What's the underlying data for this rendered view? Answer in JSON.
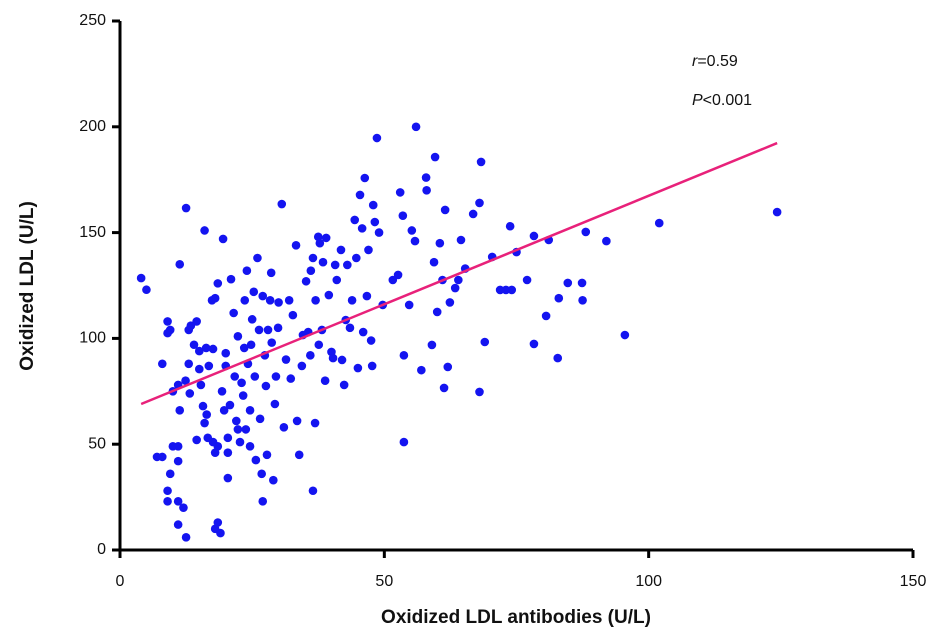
{
  "chart_data": {
    "type": "scatter",
    "x_label": "Oxidized LDL antibodies (U/L)",
    "y_label": "Oxidized LDL (U/L)",
    "xlim": [
      0,
      150
    ],
    "xticks": [
      0,
      50,
      100,
      150
    ],
    "ylim": [
      0,
      250
    ],
    "yticks": [
      0,
      50,
      100,
      150,
      200,
      250
    ],
    "annotations": [
      [
        "r",
        "=0.59"
      ],
      [
        "P",
        "<0.001"
      ]
    ],
    "fit": {
      "color": "#e8217a",
      "x": [
        4,
        124.3
      ],
      "y": [
        69,
        192.3
      ]
    },
    "series": [
      {
        "color": "#1414f0",
        "x": [
          4,
          5,
          12.5,
          11.3,
          7,
          8,
          9,
          9.5,
          9,
          8,
          9,
          9,
          9.5,
          11,
          11,
          12,
          12.5,
          10,
          11,
          11,
          10,
          11,
          11.3,
          12.4,
          13,
          13,
          13.4,
          14,
          14.5,
          15,
          15.3,
          14.5,
          15.7,
          16,
          16.4,
          16,
          16.8,
          17.6,
          17.4,
          18,
          17.6,
          18,
          18.5,
          18,
          18.5,
          19,
          19.5,
          19.3,
          19.7,
          20,
          20,
          20.4,
          20.4,
          20.4,
          20.8,
          21,
          21.5,
          21.7,
          22.3,
          22,
          22.7,
          23.3,
          23.5,
          23.6,
          24,
          24.2,
          24.6,
          24.8,
          25,
          25.3,
          25.5,
          25.7,
          26,
          26.3,
          26.5,
          26.8,
          27,
          27,
          27.4,
          27.6,
          27.8,
          28,
          28.4,
          28.6,
          28.7,
          29,
          29.3,
          29.5,
          29.9,
          30,
          30.6,
          31,
          31.4,
          32,
          32.3,
          32.7,
          33.3,
          33.5,
          33.9,
          34.4,
          34.6,
          35.2,
          35.6,
          36,
          36.1,
          36.5,
          36.5,
          36.9,
          37,
          37.5,
          37.6,
          37.8,
          38.2,
          38.4,
          38.8,
          39,
          39.5,
          40,
          40.3,
          40.7,
          41,
          41.8,
          42,
          42.4,
          42.7,
          43,
          43.5,
          43.9,
          44.4,
          44.7,
          45,
          45.4,
          45.8,
          46,
          46.3,
          46.7,
          47,
          47.5,
          47.7,
          47.9,
          48.2,
          48.6,
          49,
          49.7,
          51.6,
          52.6,
          53,
          53.5,
          53.7,
          53.7,
          54.7,
          55.2,
          55.8,
          56,
          57,
          58,
          57.9,
          59,
          59.4,
          59.6,
          60,
          60.5,
          61,
          61.3,
          61.5,
          62,
          62.4,
          63.4,
          64,
          64.5,
          65.3,
          66.8,
          68,
          68,
          68.3,
          69,
          70.4,
          71.9,
          73,
          73.8,
          74.1,
          75,
          77,
          78.3,
          78.3,
          80.6,
          81.1,
          82.8,
          83,
          84.7,
          87.4,
          87.5,
          88.1,
          92,
          95.5,
          102,
          124.3,
          16.3,
          18.5,
          13.2,
          15,
          16.6,
          23.8,
          24.6,
          22.3,
          23
        ],
        "y": [
          128.5,
          123,
          161.6,
          135,
          44,
          44,
          108,
          104,
          102.5,
          88,
          28,
          23,
          36,
          23,
          12,
          20,
          6,
          49,
          49,
          42,
          75,
          78,
          66,
          80,
          88,
          104,
          106,
          97,
          108,
          94,
          78,
          52,
          68,
          60,
          64,
          151,
          87,
          95,
          118,
          119,
          51,
          46,
          49,
          10,
          13,
          8,
          147,
          75,
          66,
          93,
          87,
          53,
          46,
          34,
          68.5,
          128,
          112,
          82,
          57,
          61,
          51,
          73,
          95.5,
          118,
          132,
          88,
          66,
          97,
          109,
          122,
          82,
          42.5,
          138,
          104,
          62,
          36,
          120,
          23,
          92,
          77.5,
          45,
          104,
          118,
          131,
          98,
          33,
          69,
          82,
          105,
          117,
          163.5,
          58,
          90,
          118,
          81,
          111,
          144,
          61,
          45,
          87,
          101.6,
          127,
          103,
          92,
          132,
          138,
          28,
          60,
          118,
          148,
          97,
          145,
          104,
          136,
          80,
          147.5,
          120.5,
          93.6,
          90.7,
          134.7,
          127.6,
          141.8,
          89.8,
          78,
          108.7,
          134.7,
          105,
          118,
          156,
          138,
          86,
          167.8,
          152,
          103,
          175.8,
          120,
          141.8,
          99,
          87,
          163,
          155,
          194.7,
          150,
          115.8,
          127.6,
          130,
          169,
          158,
          92,
          51,
          115.8,
          151,
          146,
          200,
          85,
          170,
          176,
          96.9,
          136,
          185.7,
          112.5,
          145,
          127.6,
          76.6,
          160.7,
          86.5,
          117,
          123.8,
          127.6,
          146.5,
          133,
          158.8,
          74.7,
          164,
          183.4,
          98.3,
          138.5,
          122.9,
          122.9,
          153,
          122.9,
          140.8,
          127.6,
          148.4,
          97.4,
          110.6,
          146.5,
          90.7,
          119,
          126.2,
          126.2,
          118,
          150.3,
          146,
          101.6,
          154.5,
          159.7,
          95.5,
          126,
          74,
          85.5,
          53,
          57,
          49,
          101,
          79
        ]
      }
    ]
  }
}
